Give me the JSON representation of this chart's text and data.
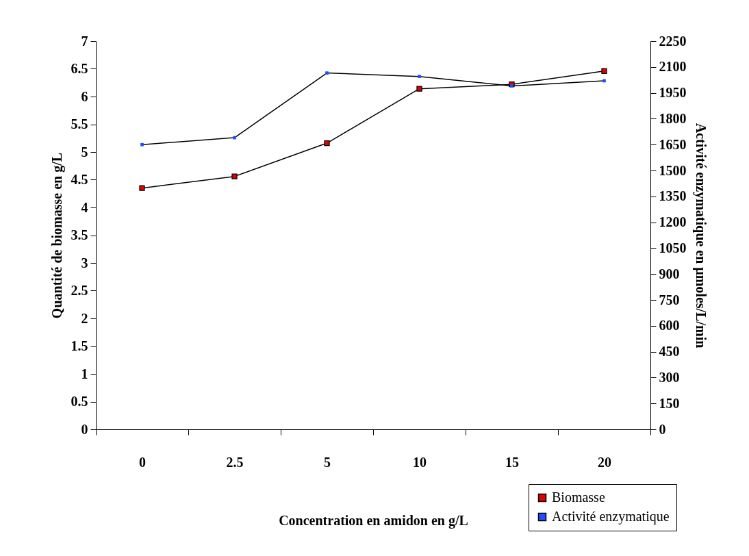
{
  "chart_data": {
    "type": "line",
    "xlabel": "Concentration en amidon en g/L",
    "ylabel": "Quantité de biomasse en g/L",
    "y2label": "Activité enzymatique en µmoles/L/min",
    "categories": [
      "0",
      "2.5",
      "5",
      "10",
      "15",
      "20"
    ],
    "series": [
      {
        "name": "Biomasse",
        "color": "#e00000",
        "marker": "square",
        "values": [
          4.35,
          4.56,
          5.16,
          6.14,
          6.22,
          6.46
        ]
      },
      {
        "name": "Activité enzymatique",
        "color": "#1f4fff",
        "marker": "square",
        "axis": "y2",
        "values": [
          1650,
          1690,
          2065,
          2045,
          1990,
          2020
        ]
      }
    ],
    "ylim": [
      0,
      7
    ],
    "yticks": [
      0,
      0.5,
      1,
      1.5,
      2,
      2.5,
      3,
      3.5,
      4,
      4.5,
      5,
      5.5,
      6,
      6.5,
      7
    ],
    "y2lim": [
      0,
      2250
    ],
    "y2ticks": [
      0,
      150,
      300,
      450,
      600,
      750,
      900,
      1050,
      1200,
      1350,
      1500,
      1650,
      1800,
      1950,
      2100,
      2250
    ],
    "legend": "bottom right"
  }
}
